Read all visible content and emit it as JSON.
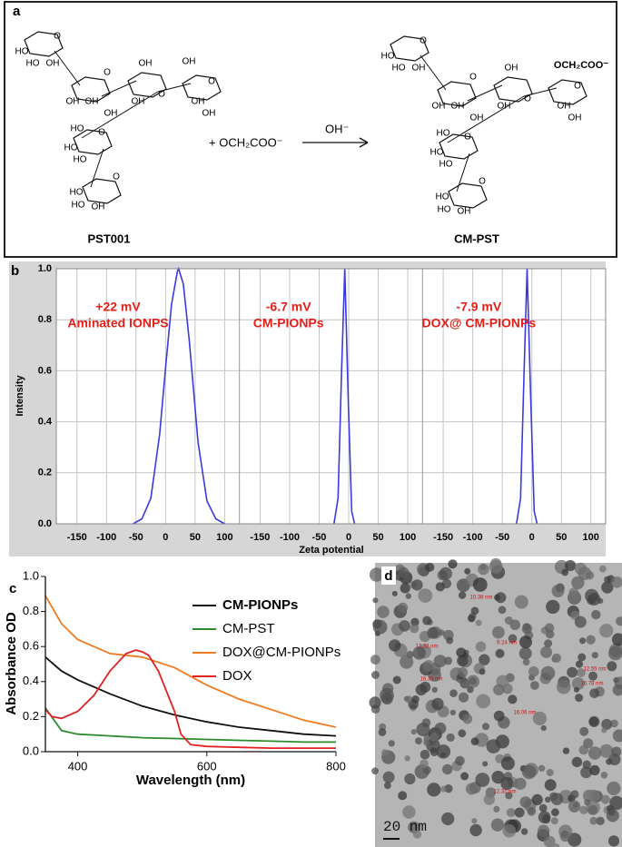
{
  "panel_labels": [
    "a",
    "b",
    "c",
    "d"
  ],
  "scheme": {
    "reagent": "+ OCH₂COO⁻",
    "condition": "OH⁻",
    "reactant": "PST001",
    "product": "CM-PST",
    "reactant_atoms": [
      "O",
      "HO",
      "HO",
      "OH",
      "O",
      "OH",
      "OH",
      "OH",
      "O",
      "OH",
      "OH",
      "O",
      "OH",
      "OH",
      "HO",
      "OH",
      "HO",
      "HO",
      "O",
      "HO",
      "HO",
      "OH",
      "O"
    ],
    "product_atoms": [
      "O",
      "HO",
      "HO",
      "OH",
      "O",
      "OH",
      "OH",
      "OH",
      "O",
      "OH",
      "OCH₂COO⁻",
      "O",
      "OH",
      "OH",
      "HO",
      "OH",
      "HO",
      "HO",
      "O",
      "HO",
      "HO",
      "OH",
      "O"
    ]
  },
  "chart_data": [
    {
      "type": "line",
      "ylabel": "Intensity",
      "xlabel": "Zeta potential",
      "color": "#3a3adf",
      "grid": true,
      "ylim": [
        0,
        1
      ],
      "yticks": [
        {
          "value": 0,
          "label": "0.0"
        },
        {
          "value": 0.2,
          "label": "0.2"
        },
        {
          "value": 0.4,
          "label": "0.4"
        },
        {
          "value": 0.6,
          "label": "0.6"
        },
        {
          "value": 0.8,
          "label": "0.8"
        },
        {
          "value": 1,
          "label": "1.0"
        }
      ],
      "xlim": [
        -185,
        125
      ],
      "xticks": [
        -150,
        -100,
        -50,
        0,
        50,
        100
      ],
      "panels": [
        {
          "annotation": [
            "+22 mV",
            "Aminated IONPS"
          ],
          "x": [
            -55,
            -40,
            -25,
            -10,
            0,
            10,
            20,
            22,
            30,
            40,
            55,
            70,
            85,
            100
          ],
          "values": [
            0,
            0.02,
            0.1,
            0.35,
            0.61,
            0.86,
            0.99,
            1,
            0.94,
            0.72,
            0.32,
            0.09,
            0.02,
            0
          ]
        },
        {
          "annotation": [
            "-6.7 mV",
            "CM-PIONPs"
          ],
          "x": [
            -25,
            -18,
            -12,
            -6.7,
            -1,
            5,
            10
          ],
          "values": [
            0,
            0.1,
            0.6,
            1,
            0.5,
            0.05,
            0
          ]
        },
        {
          "annotation": [
            "-7.9 mV",
            "DOX@ CM-PIONPs"
          ],
          "x": [
            -26,
            -19,
            -13,
            -7.9,
            -2,
            4,
            9
          ],
          "values": [
            0,
            0.1,
            0.6,
            1,
            0.5,
            0.05,
            0
          ]
        }
      ]
    },
    {
      "type": "line",
      "xlabel": "Wavelength (nm)",
      "ylabel": "Absorbance OD",
      "xlim": [
        350,
        800
      ],
      "xticks": [
        400,
        600,
        800
      ],
      "ylim": [
        0,
        1
      ],
      "yticks": [
        {
          "value": 0,
          "label": "0.0"
        },
        {
          "value": 0.2,
          "label": "0.2"
        },
        {
          "value": 0.4,
          "label": "0.4"
        },
        {
          "value": 0.6,
          "label": "0.6"
        },
        {
          "value": 0.8,
          "label": "0.8"
        },
        {
          "value": 1,
          "label": "1.0"
        }
      ],
      "series": [
        {
          "name": "CM-PIONPs",
          "color": "#111111",
          "x": [
            350,
            375,
            400,
            450,
            500,
            550,
            600,
            650,
            700,
            750,
            800
          ],
          "values": [
            0.54,
            0.46,
            0.41,
            0.33,
            0.26,
            0.21,
            0.17,
            0.14,
            0.12,
            0.1,
            0.09
          ]
        },
        {
          "name": "CM-PST",
          "color": "#2e8b2e",
          "x": [
            350,
            375,
            400,
            450,
            500,
            550,
            600,
            650,
            700,
            750,
            800
          ],
          "values": [
            0.25,
            0.12,
            0.1,
            0.09,
            0.08,
            0.075,
            0.07,
            0.065,
            0.06,
            0.055,
            0.055
          ]
        },
        {
          "name": "DOX@CM-PIONPs",
          "color": "#f07a1e",
          "x": [
            350,
            375,
            400,
            450,
            500,
            550,
            600,
            650,
            700,
            750,
            800
          ],
          "values": [
            0.89,
            0.73,
            0.64,
            0.56,
            0.54,
            0.48,
            0.38,
            0.3,
            0.24,
            0.18,
            0.14
          ]
        },
        {
          "name": "DOX",
          "color": "#e02222",
          "x": [
            350,
            360,
            375,
            400,
            425,
            450,
            475,
            490,
            500,
            510,
            525,
            550,
            560,
            575,
            600,
            650,
            700,
            800
          ],
          "values": [
            0.24,
            0.2,
            0.19,
            0.23,
            0.32,
            0.46,
            0.56,
            0.58,
            0.57,
            0.55,
            0.46,
            0.23,
            0.1,
            0.04,
            0.03,
            0.025,
            0.02,
            0.02
          ]
        }
      ]
    }
  ],
  "micrograph": {
    "scale_bar": "20 nm",
    "measurements": [
      "10.38 nm",
      "12.32 nm",
      "9.24 nm",
      "16.35 nm",
      "16.06 nm",
      "12.55 nm",
      "16.78 nm",
      "12.31 nm"
    ]
  }
}
